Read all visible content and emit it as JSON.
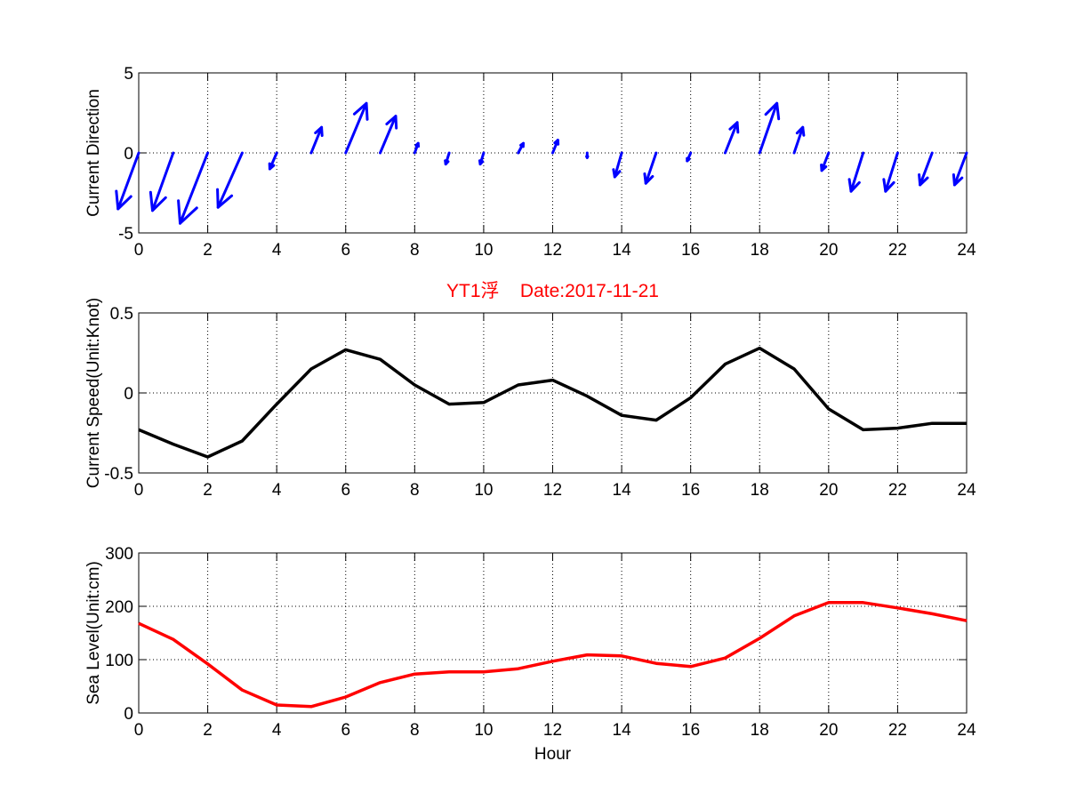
{
  "colors": {
    "quiver": "#0000ff",
    "speed": "#000000",
    "sea_level": "#ff0000",
    "title": "#ff0000"
  },
  "chart_data": [
    {
      "type": "quiver",
      "ylabel": "Current Direction",
      "xlim": [
        0,
        24
      ],
      "ylim": [
        -5,
        5
      ],
      "xticks": [
        0,
        2,
        4,
        6,
        8,
        10,
        12,
        14,
        16,
        18,
        20,
        22,
        24
      ],
      "yticks": [
        -5,
        0,
        5
      ],
      "grid": true,
      "hours": [
        0,
        1,
        2,
        3,
        4,
        5,
        6,
        7,
        8,
        9,
        10,
        11,
        12,
        13,
        14,
        15,
        16,
        17,
        18,
        19,
        20,
        21,
        22,
        23,
        24
      ],
      "u": [
        -0.6,
        -0.6,
        -0.8,
        -0.7,
        -0.2,
        0.3,
        0.6,
        0.45,
        0.1,
        -0.1,
        -0.1,
        0.15,
        0.15,
        0.0,
        -0.2,
        -0.3,
        -0.1,
        0.35,
        0.5,
        0.25,
        -0.2,
        -0.35,
        -0.35,
        -0.35,
        -0.35
      ],
      "v": [
        -3.5,
        -3.6,
        -4.4,
        -3.4,
        -1.0,
        1.6,
        3.1,
        2.3,
        0.6,
        -0.7,
        -0.7,
        0.6,
        0.8,
        -0.3,
        -1.5,
        -1.9,
        -0.5,
        1.9,
        3.1,
        1.6,
        -1.1,
        -2.4,
        -2.4,
        -2.0,
        -2.0
      ]
    },
    {
      "type": "line",
      "title": "YT1浮    Date:2017-11-21",
      "ylabel": "Current Speed(Unit:Knot)",
      "xlim": [
        0,
        24
      ],
      "ylim": [
        -0.5,
        0.5
      ],
      "xticks": [
        0,
        2,
        4,
        6,
        8,
        10,
        12,
        14,
        16,
        18,
        20,
        22,
        24
      ],
      "yticks": [
        -0.5,
        0,
        0.5
      ],
      "grid": true,
      "x": [
        0,
        1,
        2,
        3,
        4,
        5,
        6,
        7,
        8,
        9,
        10,
        11,
        12,
        13,
        14,
        15,
        16,
        17,
        18,
        19,
        20,
        21,
        22,
        23,
        24
      ],
      "y": [
        -0.23,
        -0.32,
        -0.4,
        -0.3,
        -0.07,
        0.15,
        0.27,
        0.21,
        0.05,
        -0.07,
        -0.06,
        0.05,
        0.08,
        -0.02,
        -0.14,
        -0.17,
        -0.03,
        0.18,
        0.28,
        0.15,
        -0.1,
        -0.23,
        -0.22,
        -0.19,
        -0.19
      ]
    },
    {
      "type": "line",
      "ylabel": "Sea Level(Unit:cm)",
      "xlabel": "Hour",
      "xlim": [
        0,
        24
      ],
      "ylim": [
        0,
        300
      ],
      "xticks": [
        0,
        2,
        4,
        6,
        8,
        10,
        12,
        14,
        16,
        18,
        20,
        22,
        24
      ],
      "yticks": [
        0,
        100,
        200,
        300
      ],
      "grid": true,
      "x": [
        0,
        1,
        2,
        3,
        4,
        5,
        6,
        7,
        8,
        9,
        10,
        11,
        12,
        13,
        14,
        15,
        16,
        17,
        18,
        19,
        20,
        21,
        22,
        23,
        24
      ],
      "y": [
        168,
        138,
        92,
        43,
        15,
        12,
        30,
        57,
        73,
        77,
        77,
        83,
        97,
        109,
        107,
        93,
        87,
        103,
        140,
        182,
        207,
        207,
        197,
        186,
        173
      ]
    }
  ]
}
